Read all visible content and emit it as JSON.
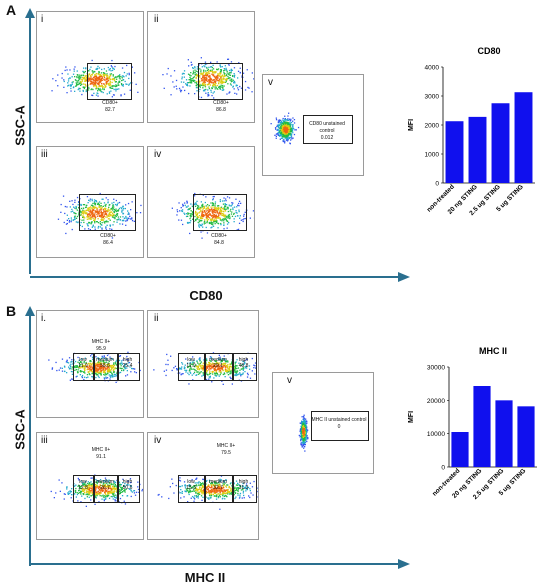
{
  "panels": {
    "a_letter": "A",
    "b_letter": "B",
    "a_yaxis": "SSC-A",
    "a_xaxis": "CD80",
    "b_yaxis": "SSC-A",
    "b_xaxis": "MHC II"
  },
  "flow_a": {
    "romans": [
      "i",
      "ii",
      "iii",
      "iv",
      "v"
    ],
    "gates": [
      {
        "label": "CD80+",
        "value": "82.7"
      },
      {
        "label": "CD80+",
        "value": "86.8"
      },
      {
        "label": "CD80+",
        "value": "86.4"
      },
      {
        "label": "CD80+",
        "value": "84.8"
      },
      {
        "label": "CD80 unstained control",
        "value": "0.012"
      }
    ]
  },
  "flow_b": {
    "romans": [
      "i.",
      "ii",
      "iii",
      "iv",
      "v"
    ],
    "header_gates": [
      {
        "label": "MHC II+",
        "value": "95.9"
      },
      {
        "label": "MHC II+",
        "value": "91.1"
      },
      {
        "label": "MHC II+",
        "value": "79.5"
      }
    ],
    "subgates": {
      "names": [
        "low",
        "medium",
        "high"
      ],
      "i": [
        "11.9",
        "58.6",
        "25.4"
      ],
      "ii": [
        "11.9",
        "29.1",
        "48.8"
      ],
      "iii": [
        "12.8",
        "26.7",
        "50.6"
      ],
      "iv": [
        "15.3",
        "32.7",
        "31.3"
      ]
    },
    "control": {
      "label": "MHC II unstained control",
      "value": "0"
    }
  },
  "chart_data": [
    {
      "type": "bar",
      "title": "CD80",
      "ylabel": "MFI",
      "xlabel": "",
      "categories": [
        "non-treated",
        "20 ng STING",
        "2.5 ug STING",
        "5 ug STING"
      ],
      "values": [
        2130,
        2280,
        2750,
        3130
      ],
      "ylim": [
        0,
        4000
      ],
      "yticks": [
        0,
        1000,
        2000,
        3000,
        4000
      ],
      "color": "#1010ee"
    },
    {
      "type": "bar",
      "title": "MHC II",
      "ylabel": "MFI",
      "xlabel": "",
      "categories": [
        "non-treated",
        "20 ng STING",
        "2.5 ug STING",
        "5 ug STING"
      ],
      "values": [
        10500,
        24300,
        20000,
        18200
      ],
      "ylim": [
        0,
        30000
      ],
      "yticks": [
        0,
        10000,
        20000,
        30000
      ],
      "color": "#1010ee"
    }
  ]
}
